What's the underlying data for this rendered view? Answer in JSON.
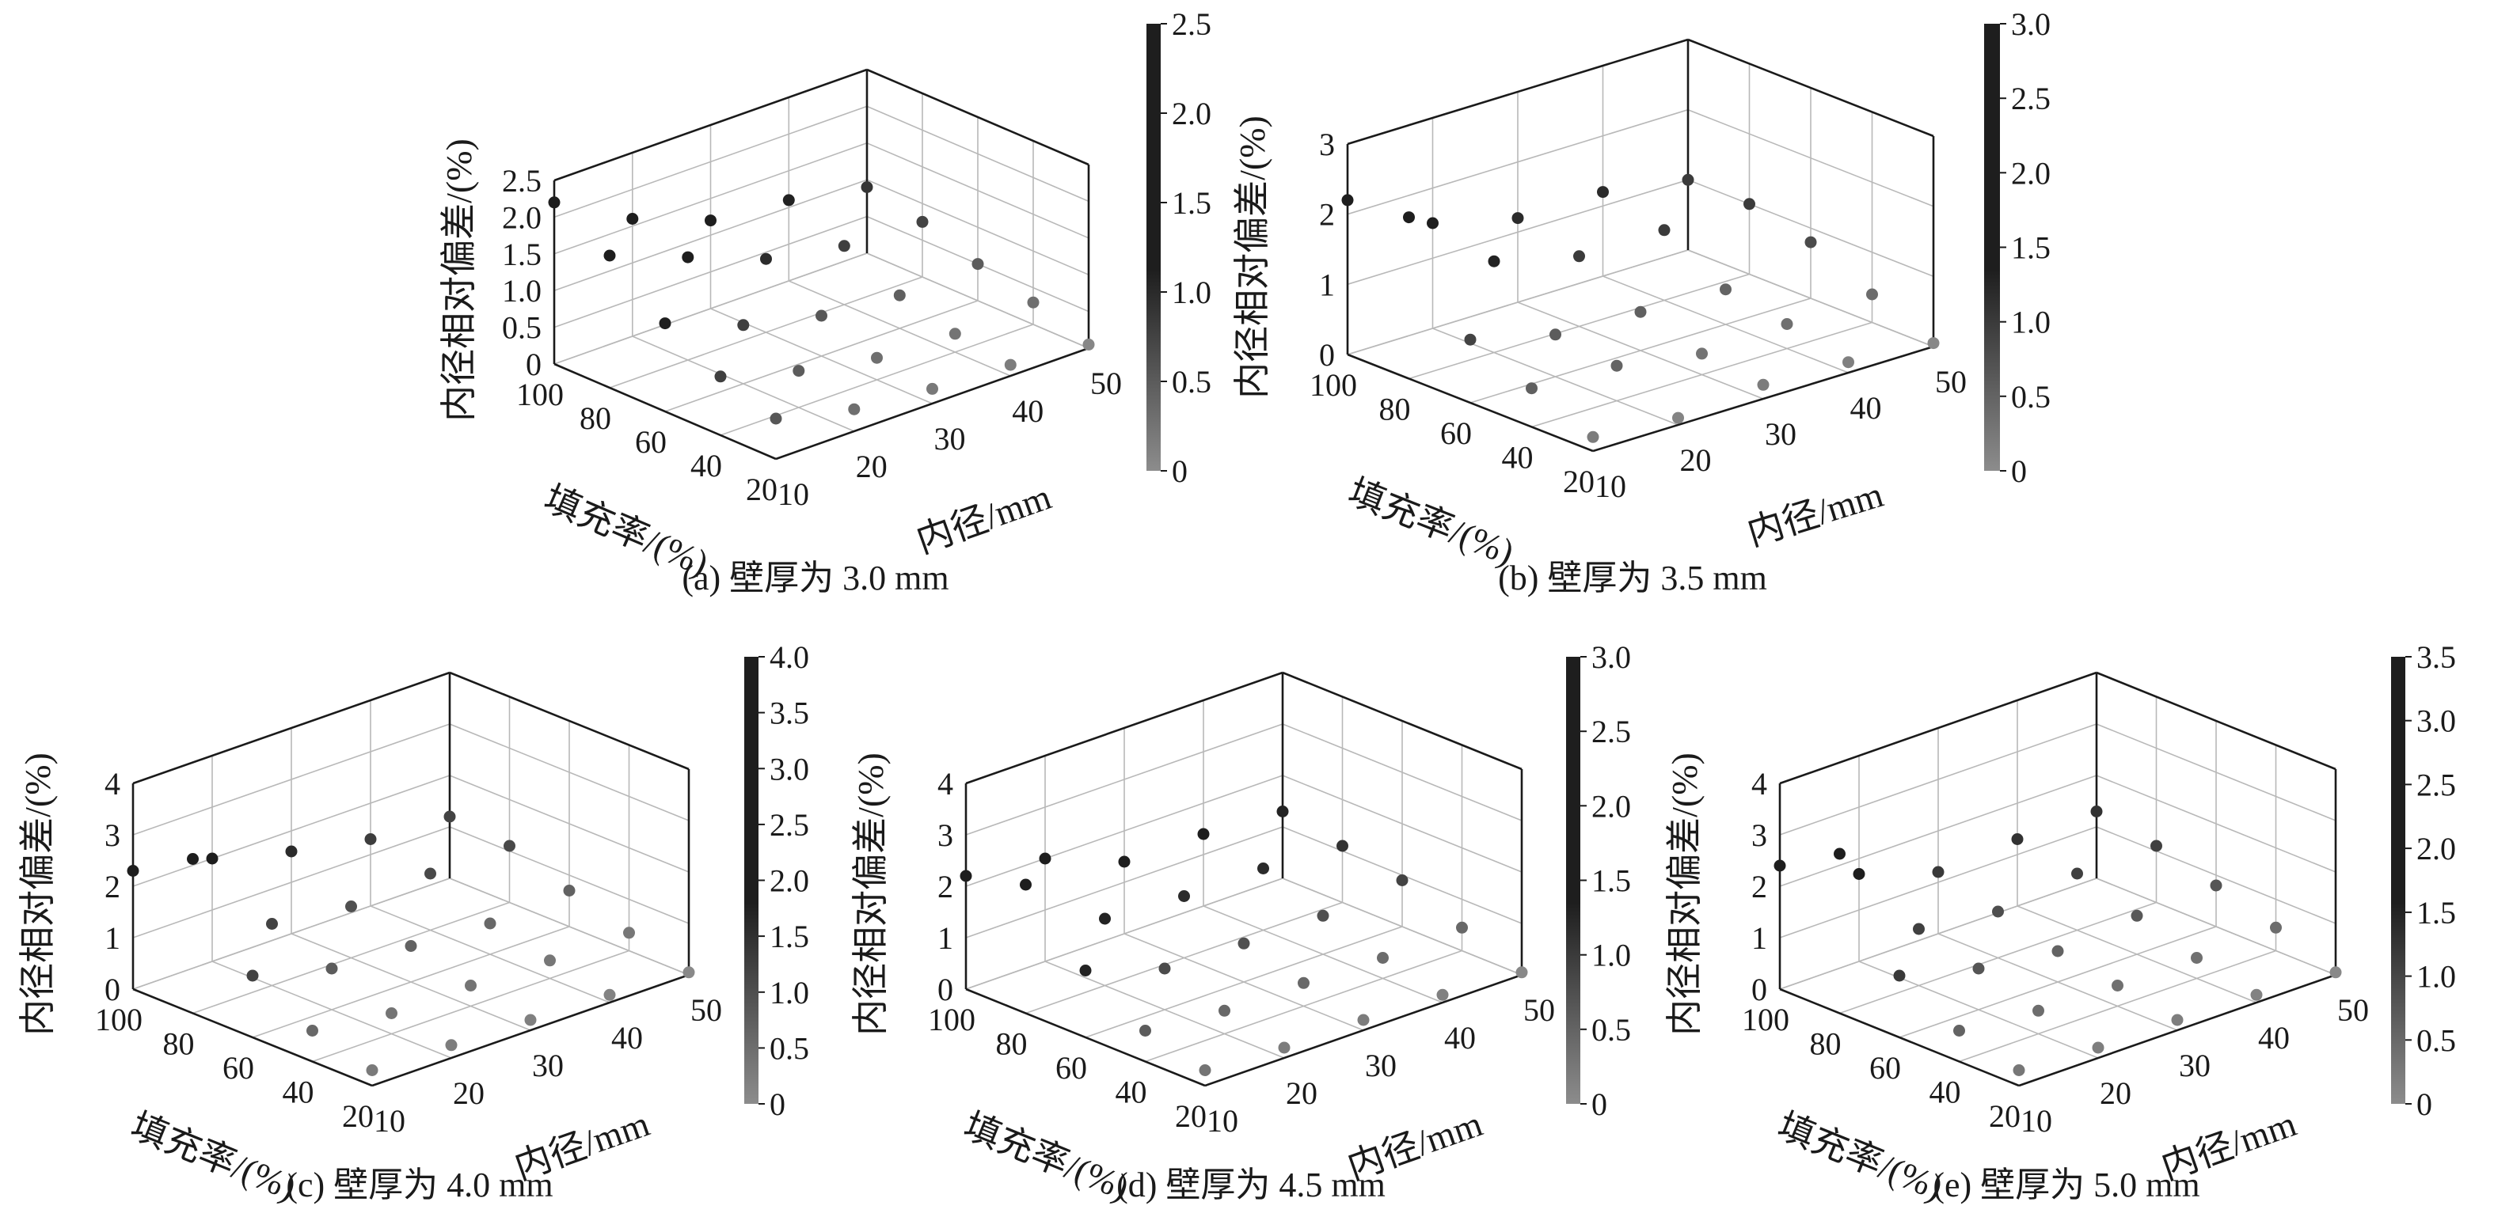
{
  "chart_data": [
    {
      "type": "scatter",
      "caption": "(a)  壁厚为 3.0 mm",
      "xlabel": "内径/mm",
      "ylabel": "填充率/(%)",
      "zlabel": "内径相对偏差/(%)",
      "x_ticks": [
        "10",
        "20",
        "30",
        "40",
        "50"
      ],
      "y_ticks": [
        "100",
        "80",
        "60",
        "40",
        "20"
      ],
      "z_ticks": [
        "0",
        "0.5",
        "1.0",
        "1.5",
        "2.0",
        "2.5"
      ],
      "colorbar_ticks": [
        "0",
        "0.5",
        "1.0",
        "1.5",
        "2.0",
        "2.5"
      ],
      "xlim": [
        10,
        50
      ],
      "ylim": [
        20,
        100
      ],
      "zlim": [
        0,
        2.5
      ],
      "clim": [
        0,
        2.5
      ],
      "x": [
        10,
        10,
        10,
        10,
        10,
        20,
        20,
        20,
        20,
        20,
        30,
        30,
        30,
        30,
        30,
        40,
        40,
        40,
        40,
        40,
        50,
        50,
        50,
        50,
        50
      ],
      "y": [
        100,
        80,
        60,
        40,
        20,
        100,
        80,
        60,
        40,
        20,
        100,
        80,
        60,
        40,
        20,
        100,
        80,
        60,
        40,
        20,
        100,
        80,
        60,
        40,
        20
      ],
      "z": [
        2.2,
        1.8,
        1.2,
        0.8,
        0.55,
        1.6,
        1.4,
        0.8,
        0.5,
        0.3,
        1.2,
        1.0,
        0.55,
        0.3,
        0.2,
        1.1,
        0.8,
        0.45,
        0.25,
        0.15,
        0.9,
        0.75,
        0.5,
        0.3,
        0.05
      ]
    },
    {
      "type": "scatter",
      "caption": "(b)  壁厚为 3.5 mm",
      "xlabel": "内径/mm",
      "ylabel": "填充率/(%)",
      "zlabel": "内径相对偏差/(%)",
      "x_ticks": [
        "10",
        "20",
        "30",
        "40",
        "50"
      ],
      "y_ticks": [
        "100",
        "80",
        "60",
        "40",
        "20"
      ],
      "z_ticks": [
        "0",
        "1",
        "2",
        "3"
      ],
      "colorbar_ticks": [
        "0",
        "0.5",
        "1.0",
        "1.5",
        "2.0",
        "2.5",
        "3.0"
      ],
      "xlim": [
        10,
        50
      ],
      "ylim": [
        20,
        100
      ],
      "zlim": [
        0,
        3
      ],
      "clim": [
        0,
        3
      ],
      "x": [
        10,
        10,
        10,
        10,
        10,
        20,
        20,
        20,
        20,
        20,
        30,
        30,
        30,
        30,
        30,
        40,
        40,
        40,
        40,
        40,
        50,
        50,
        50,
        50,
        50
      ],
      "y": [
        100,
        80,
        60,
        40,
        20,
        100,
        80,
        60,
        40,
        20,
        100,
        80,
        60,
        40,
        20,
        100,
        80,
        60,
        40,
        20,
        100,
        80,
        60,
        40,
        20
      ],
      "z": [
        2.2,
        2.3,
        0.9,
        0.55,
        0.2,
        1.5,
        1.3,
        0.6,
        0.5,
        0.1,
        1.2,
        1.0,
        0.55,
        0.3,
        0.2,
        1.2,
        1.0,
        0.5,
        0.35,
        0.15,
        1.0,
        1.0,
        0.8,
        0.4,
        0.05
      ]
    },
    {
      "type": "scatter",
      "caption": "(c)  壁厚为 4.0 mm",
      "xlabel": "内径/mm",
      "ylabel": "填充率/(%)",
      "zlabel": "内径相对偏差/(%)",
      "x_ticks": [
        "10",
        "20",
        "30",
        "40",
        "50"
      ],
      "y_ticks": [
        "100",
        "80",
        "60",
        "40",
        "20"
      ],
      "z_ticks": [
        "0",
        "1",
        "2",
        "3",
        "4"
      ],
      "colorbar_ticks": [
        "0",
        "0.5",
        "1.0",
        "1.5",
        "2.0",
        "2.5",
        "3.0",
        "3.5",
        "4.0"
      ],
      "xlim": [
        10,
        50
      ],
      "ylim": [
        20,
        100
      ],
      "zlim": [
        0,
        4
      ],
      "clim": [
        0,
        4
      ],
      "x": [
        10,
        10,
        10,
        10,
        10,
        20,
        20,
        20,
        20,
        20,
        30,
        30,
        30,
        30,
        30,
        40,
        40,
        40,
        40,
        40,
        50,
        50,
        50,
        50,
        50
      ],
      "y": [
        100,
        80,
        60,
        40,
        20,
        100,
        80,
        60,
        40,
        20,
        100,
        80,
        60,
        40,
        20,
        100,
        80,
        60,
        40,
        20,
        100,
        80,
        60,
        40,
        20
      ],
      "z": [
        2.3,
        3.0,
        1.2,
        0.6,
        0.3,
        2.0,
        1.2,
        0.8,
        0.4,
        0.25,
        1.6,
        1.0,
        0.7,
        0.4,
        0.2,
        1.3,
        1.1,
        0.6,
        0.35,
        0.15,
        1.2,
        1.1,
        0.7,
        0.35,
        0.05
      ]
    },
    {
      "type": "scatter",
      "caption": "(d)  壁厚为 4.5 mm",
      "xlabel": "内径/mm",
      "ylabel": "填充率/(%)",
      "zlabel": "内径相对偏差/(%)",
      "x_ticks": [
        "10",
        "20",
        "30",
        "40",
        "50"
      ],
      "y_ticks": [
        "100",
        "80",
        "60",
        "40",
        "20"
      ],
      "z_ticks": [
        "0",
        "1",
        "2",
        "3",
        "4"
      ],
      "colorbar_ticks": [
        "0",
        "0.5",
        "1.0",
        "1.5",
        "2.0",
        "2.5",
        "3.0"
      ],
      "xlim": [
        10,
        50
      ],
      "ylim": [
        20,
        100
      ],
      "zlim": [
        0,
        4
      ],
      "clim": [
        0,
        3
      ],
      "x": [
        10,
        10,
        10,
        10,
        10,
        20,
        20,
        20,
        20,
        20,
        30,
        30,
        30,
        30,
        30,
        40,
        40,
        40,
        40,
        40,
        50,
        50,
        50,
        50,
        50
      ],
      "y": [
        100,
        80,
        60,
        40,
        20,
        100,
        80,
        60,
        40,
        20,
        100,
        80,
        60,
        40,
        20,
        100,
        80,
        60,
        40,
        20,
        100,
        80,
        60,
        40,
        20
      ],
      "z": [
        2.2,
        2.5,
        1.3,
        0.6,
        0.3,
        2.0,
        1.3,
        0.8,
        0.45,
        0.2,
        1.4,
        1.2,
        0.75,
        0.45,
        0.2,
        1.4,
        1.2,
        0.75,
        0.4,
        0.15,
        1.3,
        1.1,
        0.9,
        0.45,
        0.05
      ]
    },
    {
      "type": "scatter",
      "caption": "(e)  壁厚为 5.0 mm",
      "xlabel": "内径/mm",
      "ylabel": "填充率/(%)",
      "zlabel": "内径相对偏差/(%)",
      "x_ticks": [
        "10",
        "20",
        "30",
        "40",
        "50"
      ],
      "y_ticks": [
        "100",
        "80",
        "60",
        "40",
        "20"
      ],
      "z_ticks": [
        "0",
        "1",
        "2",
        "3",
        "4"
      ],
      "colorbar_ticks": [
        "0",
        "0.5",
        "1.0",
        "1.5",
        "2.0",
        "2.5",
        "3.0",
        "3.5"
      ],
      "xlim": [
        10,
        50
      ],
      "ylim": [
        20,
        100
      ],
      "zlim": [
        0,
        4
      ],
      "clim": [
        0,
        3.5
      ],
      "x": [
        10,
        10,
        10,
        10,
        10,
        20,
        20,
        20,
        20,
        20,
        30,
        30,
        30,
        30,
        30,
        40,
        40,
        40,
        40,
        40,
        50,
        50,
        50,
        50,
        50
      ],
      "y": [
        100,
        80,
        60,
        40,
        20,
        100,
        80,
        60,
        40,
        20,
        100,
        80,
        60,
        40,
        20,
        100,
        80,
        60,
        40,
        20,
        100,
        80,
        60,
        40,
        20
      ],
      "z": [
        2.4,
        3.1,
        1.2,
        0.6,
        0.3,
        1.7,
        1.1,
        0.8,
        0.45,
        0.2,
        1.2,
        0.9,
        0.6,
        0.4,
        0.2,
        1.3,
        1.1,
        0.75,
        0.4,
        0.15,
        1.3,
        1.1,
        0.8,
        0.45,
        0.05
      ]
    }
  ],
  "colormap": {
    "low": "#8c8c8c",
    "high": "#1e1e1e"
  }
}
